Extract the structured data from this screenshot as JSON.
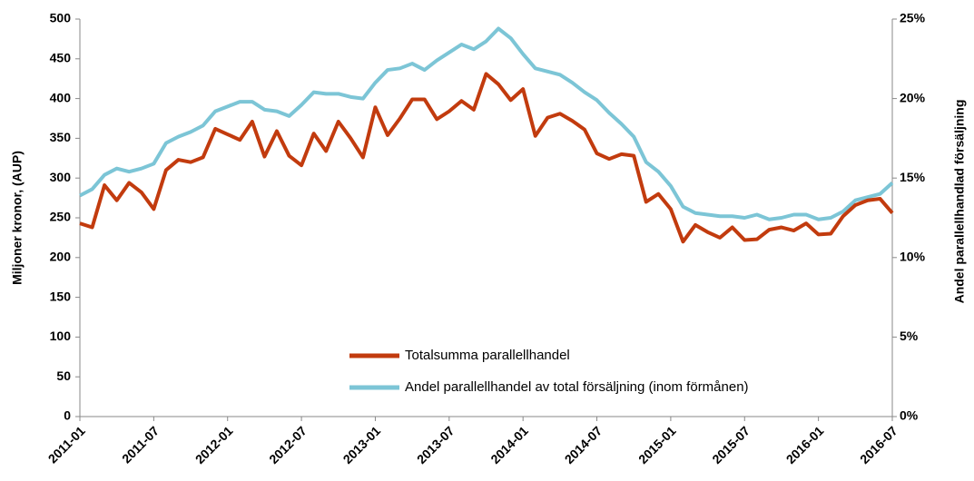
{
  "chart_data": {
    "type": "line",
    "categories": [
      "2011-01",
      null,
      null,
      null,
      null,
      null,
      "2011-07",
      null,
      null,
      null,
      null,
      null,
      "2012-01",
      null,
      null,
      null,
      null,
      null,
      "2012-07",
      null,
      null,
      null,
      null,
      null,
      "2013-01",
      null,
      null,
      null,
      null,
      null,
      "2013-07",
      null,
      null,
      null,
      null,
      null,
      "2014-01",
      null,
      null,
      null,
      null,
      null,
      "2014-07",
      null,
      null,
      null,
      null,
      null,
      "2015-01",
      null,
      null,
      null,
      null,
      null,
      "2015-07",
      null,
      null,
      null,
      null,
      null,
      "2016-01",
      null,
      null,
      null,
      null,
      null,
      "2016-07"
    ],
    "y_label": "Miljoner kronor, (AUP)",
    "y2_label": "Andel parallellhandlad försäljning",
    "ylim": [
      0,
      500
    ],
    "yticks": [
      0,
      50,
      100,
      150,
      200,
      250,
      300,
      350,
      400,
      450,
      500
    ],
    "y2lim": [
      0,
      25
    ],
    "y2ticks": [
      {
        "value": 0,
        "label": "0%"
      },
      {
        "value": 5,
        "label": "5%"
      },
      {
        "value": 10,
        "label": "10%"
      },
      {
        "value": 15,
        "label": "15%"
      },
      {
        "value": 20,
        "label": "20%"
      },
      {
        "value": 25,
        "label": "25%"
      }
    ],
    "grid": false,
    "legend": "bottom",
    "series": [
      {
        "name": "Totalsumma parallellhandel",
        "color": "#c23b0e",
        "axis": "y",
        "values": [
          243,
          238,
          291,
          272,
          294,
          282,
          261,
          310,
          323,
          320,
          326,
          362,
          355,
          348,
          371,
          327,
          359,
          328,
          316,
          356,
          334,
          371,
          350,
          326,
          389,
          354,
          375,
          399,
          399,
          374,
          384,
          397,
          386,
          431,
          418,
          398,
          412,
          353,
          376,
          381,
          372,
          361,
          331,
          324,
          330,
          328,
          270,
          280,
          261,
          220,
          241,
          232,
          225,
          238,
          222,
          223,
          235,
          238,
          234,
          243,
          229,
          230,
          252,
          266,
          272,
          274,
          256
        ]
      },
      {
        "name": "Andel parallellhandel av total försäljning (inom förmånen)",
        "color": "#7cc5d6",
        "axis": "y2",
        "values": [
          13.9,
          14.3,
          15.2,
          15.6,
          15.4,
          15.6,
          15.9,
          17.2,
          17.6,
          17.9,
          18.3,
          19.2,
          19.5,
          19.8,
          19.8,
          19.3,
          19.2,
          18.9,
          19.6,
          20.4,
          20.3,
          20.3,
          20.1,
          20.0,
          21.0,
          21.8,
          21.9,
          22.2,
          21.8,
          22.4,
          22.9,
          23.4,
          23.1,
          23.6,
          24.4,
          23.8,
          22.8,
          21.9,
          21.7,
          21.5,
          21.0,
          20.4,
          19.9,
          19.1,
          18.4,
          17.6,
          16.0,
          15.4,
          14.5,
          13.2,
          12.8,
          12.7,
          12.6,
          12.6,
          12.5,
          12.7,
          12.4,
          12.5,
          12.7,
          12.7,
          12.4,
          12.5,
          12.9,
          13.6,
          13.8,
          14.0,
          14.7
        ]
      }
    ]
  }
}
